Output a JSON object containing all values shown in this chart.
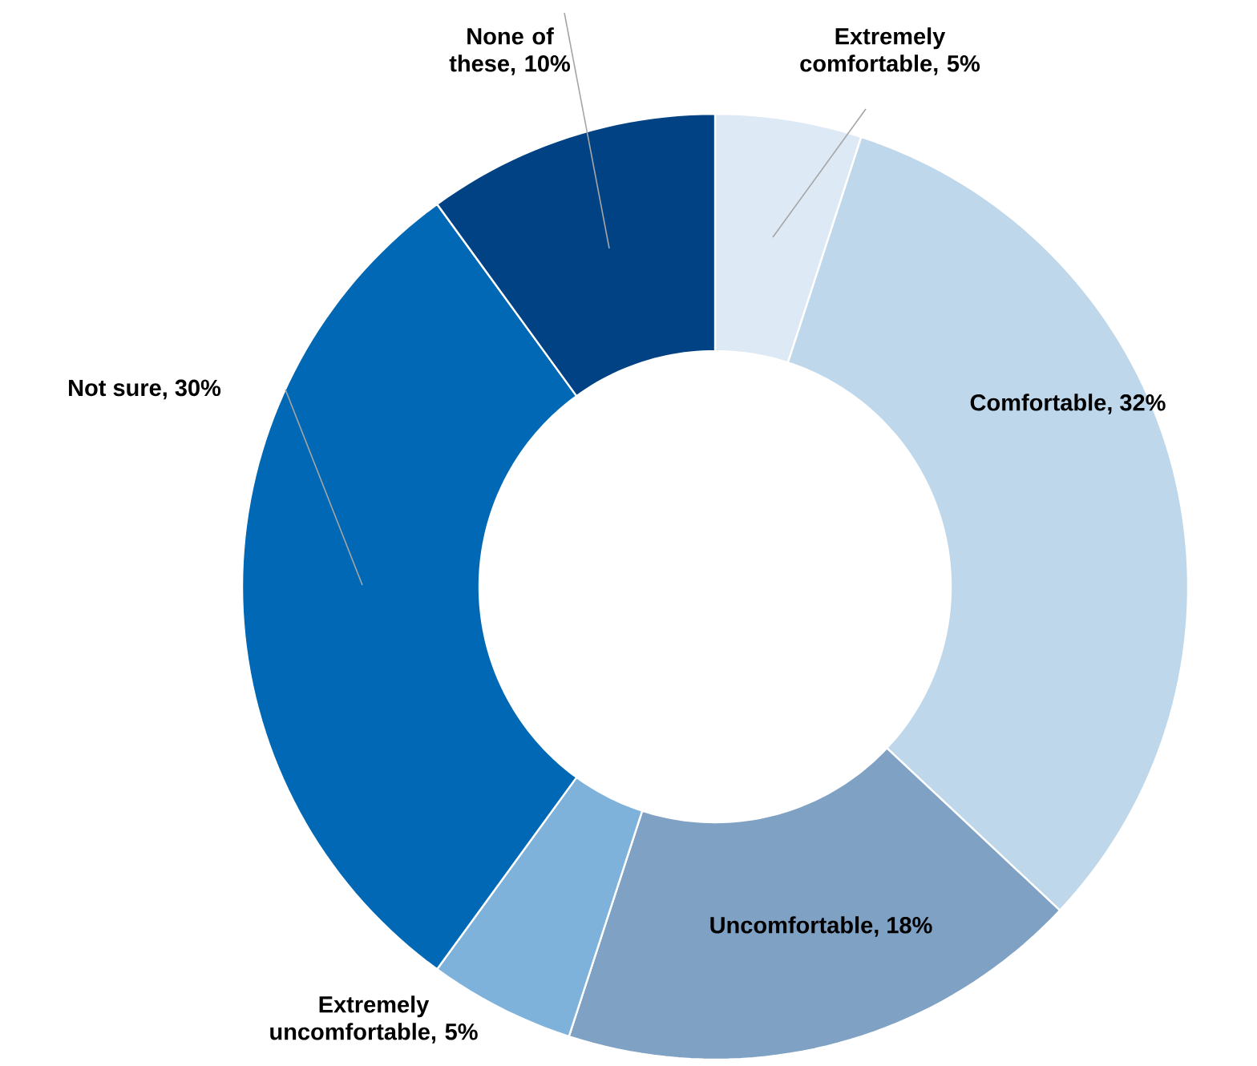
{
  "chart_data": {
    "type": "donut",
    "categories": [
      "Extremely comfortable, 5%",
      "Comfortable, 32%",
      "Uncomfortable, 18%",
      "Extremely uncomfortable, 5%",
      "Not sure, 30%",
      "None of these, 10%"
    ],
    "values": [
      5,
      32,
      18,
      5,
      30,
      10
    ],
    "colors": [
      "#dde9f4",
      "#bfd7ea",
      "#7fa1c4",
      "#7fb2da",
      "#0068b4",
      "#004283"
    ]
  }
}
